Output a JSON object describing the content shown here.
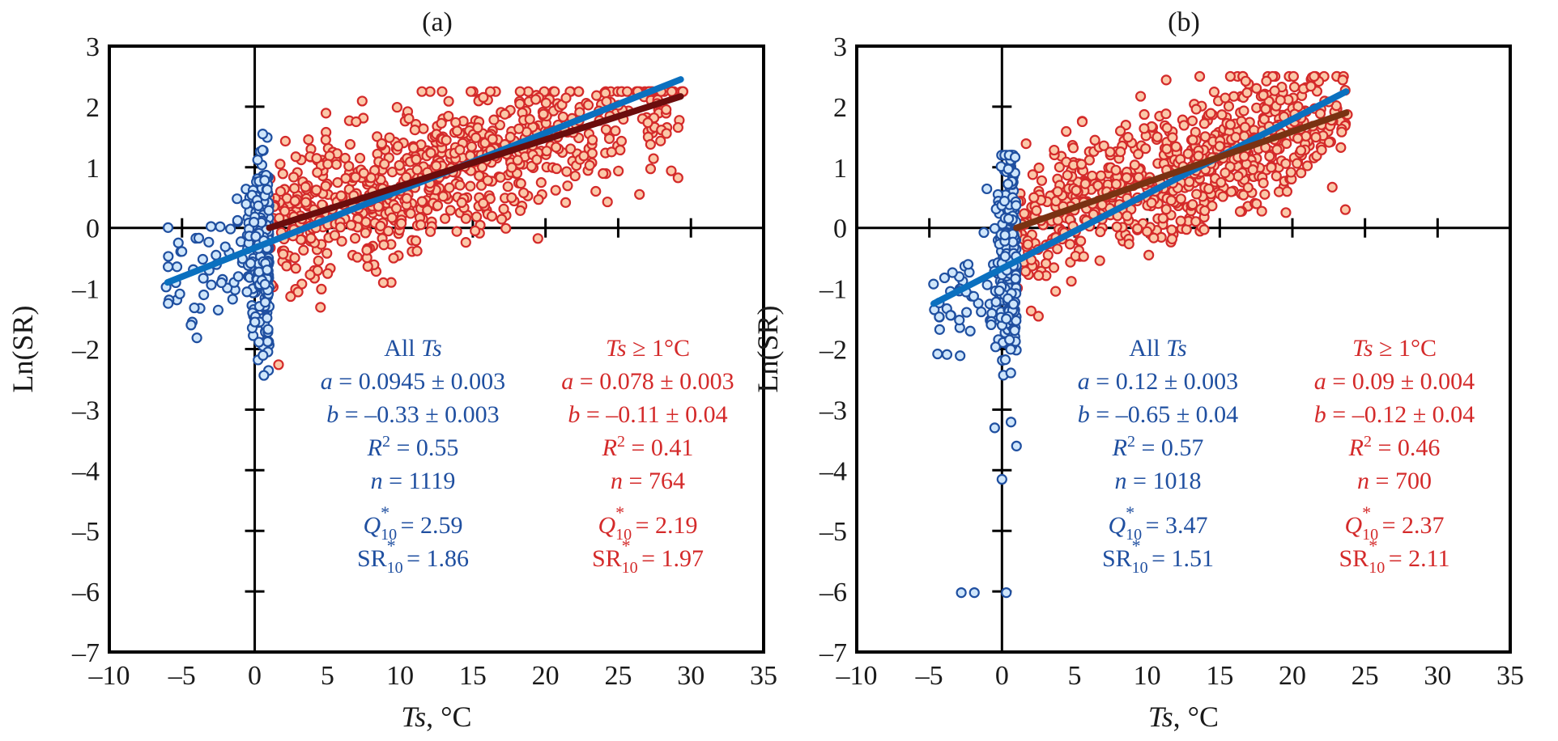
{
  "chart_data": [
    {
      "type": "scatter",
      "panel_label": "(a)",
      "xlabel_italic": "Ts",
      "xlabel_rest": ", °C",
      "ylabel": "Ln(SR)",
      "xlim": [
        -10,
        35
      ],
      "ylim": [
        -7,
        3
      ],
      "xticks": [
        -10,
        -5,
        0,
        5,
        10,
        15,
        20,
        25,
        30,
        35
      ],
      "yticks": [
        3,
        2,
        1,
        0,
        -1,
        -2,
        -3,
        -4,
        -5,
        -6,
        -7
      ],
      "xtick_labels": [
        "–10",
        "–5",
        "0",
        "5",
        "10",
        "15",
        "20",
        "25",
        "30",
        "35"
      ],
      "ytick_labels": [
        "3",
        "2",
        "1",
        "0",
        "–1",
        "–2",
        "–3",
        "–4",
        "–5",
        "–6",
        "–7"
      ],
      "grid": false,
      "series": [
        {
          "name": "All Ts",
          "color": "#1f4fa0",
          "fill": "#cfe6fb",
          "fit_line": {
            "color": "#0a70bf",
            "x": [
              -6.0,
              29.3
            ],
            "y": [
              -0.9,
              2.45
            ]
          },
          "stats": {
            "title_prefix": "All ",
            "title_italic": "Ts",
            "title_suffix": "",
            "a": "0.0945 ± 0.003",
            "b": "–0.33 ± 0.003",
            "R2": "0.55",
            "n": "1119",
            "Q10": "2.59",
            "SR10": "1.86"
          }
        },
        {
          "name": "Ts ≥ 1°C",
          "color": "#d42a2a",
          "fill": "#fbc8a8",
          "fit_line": {
            "color": "#6b0d0d",
            "x": [
              1.0,
              29.3
            ],
            "y": [
              0.0,
              2.17
            ]
          },
          "stats": {
            "title_prefix": "",
            "title_italic": "Ts",
            "title_suffix": " ≥ 1°C",
            "a": "0.078 ± 0.003",
            "b": "–0.11 ± 0.04",
            "R2": "0.41",
            "n": "764",
            "Q10": "2.19",
            "SR10": "1.97"
          }
        }
      ],
      "cold_cluster": {
        "x_range": [
          -6.2,
          1.0
        ],
        "y_range": [
          -2.55,
          1.55
        ],
        "count": 355
      },
      "warm_cloud": {
        "x_range": [
          1.0,
          29.5
        ],
        "y_range": [
          -2.5,
          2.25
        ],
        "count": 764
      }
    },
    {
      "type": "scatter",
      "panel_label": "(b)",
      "xlabel_italic": "Ts",
      "xlabel_rest": ", °C",
      "ylabel": "Ln(SR)",
      "xlim": [
        -10,
        35
      ],
      "ylim": [
        -7,
        3
      ],
      "xticks": [
        -10,
        -5,
        0,
        5,
        10,
        15,
        20,
        25,
        30,
        35
      ],
      "yticks": [
        3,
        2,
        1,
        0,
        -1,
        -2,
        -3,
        -4,
        -5,
        -6,
        -7
      ],
      "xtick_labels": [
        "–10",
        "–5",
        "0",
        "5",
        "10",
        "15",
        "20",
        "25",
        "30",
        "35"
      ],
      "ytick_labels": [
        "3",
        "2",
        "1",
        "0",
        "–1",
        "–2",
        "–3",
        "–4",
        "–5",
        "–6",
        "–7"
      ],
      "grid": false,
      "series": [
        {
          "name": "All Ts",
          "color": "#1f4fa0",
          "fill": "#cfe6fb",
          "fit_line": {
            "color": "#0a70bf",
            "x": [
              -4.7,
              23.7
            ],
            "y": [
              -1.25,
              2.25
            ]
          },
          "stats": {
            "title_prefix": "All ",
            "title_italic": "Ts",
            "title_suffix": "",
            "a": "0.12 ± 0.003",
            "b": "–0.65 ± 0.04",
            "R2": "0.57",
            "n": "1018",
            "Q10": "3.47",
            "SR10": "1.51"
          }
        },
        {
          "name": "Ts ≥ 1°C",
          "color": "#d42a2a",
          "fill": "#fbc8a8",
          "fit_line": {
            "color": "#7a3212",
            "x": [
              1.0,
              23.7
            ],
            "y": [
              0.0,
              1.9
            ]
          },
          "stats": {
            "title_prefix": "",
            "title_italic": "Ts",
            "title_suffix": " ≥ 1°C",
            "a": "0.09 ± 0.004",
            "b": "–0.12 ± 0.04",
            "R2": "0.46",
            "n": "700",
            "Q10": "2.37",
            "SR10": "2.11"
          }
        }
      ],
      "cold_cluster": {
        "x_range": [
          -4.8,
          1.0
        ],
        "y_range": [
          -6.05,
          1.2
        ],
        "count": 318
      },
      "warm_cloud": {
        "x_range": [
          1.0,
          23.8
        ],
        "y_range": [
          -2.5,
          2.5
        ],
        "count": 700
      }
    }
  ]
}
